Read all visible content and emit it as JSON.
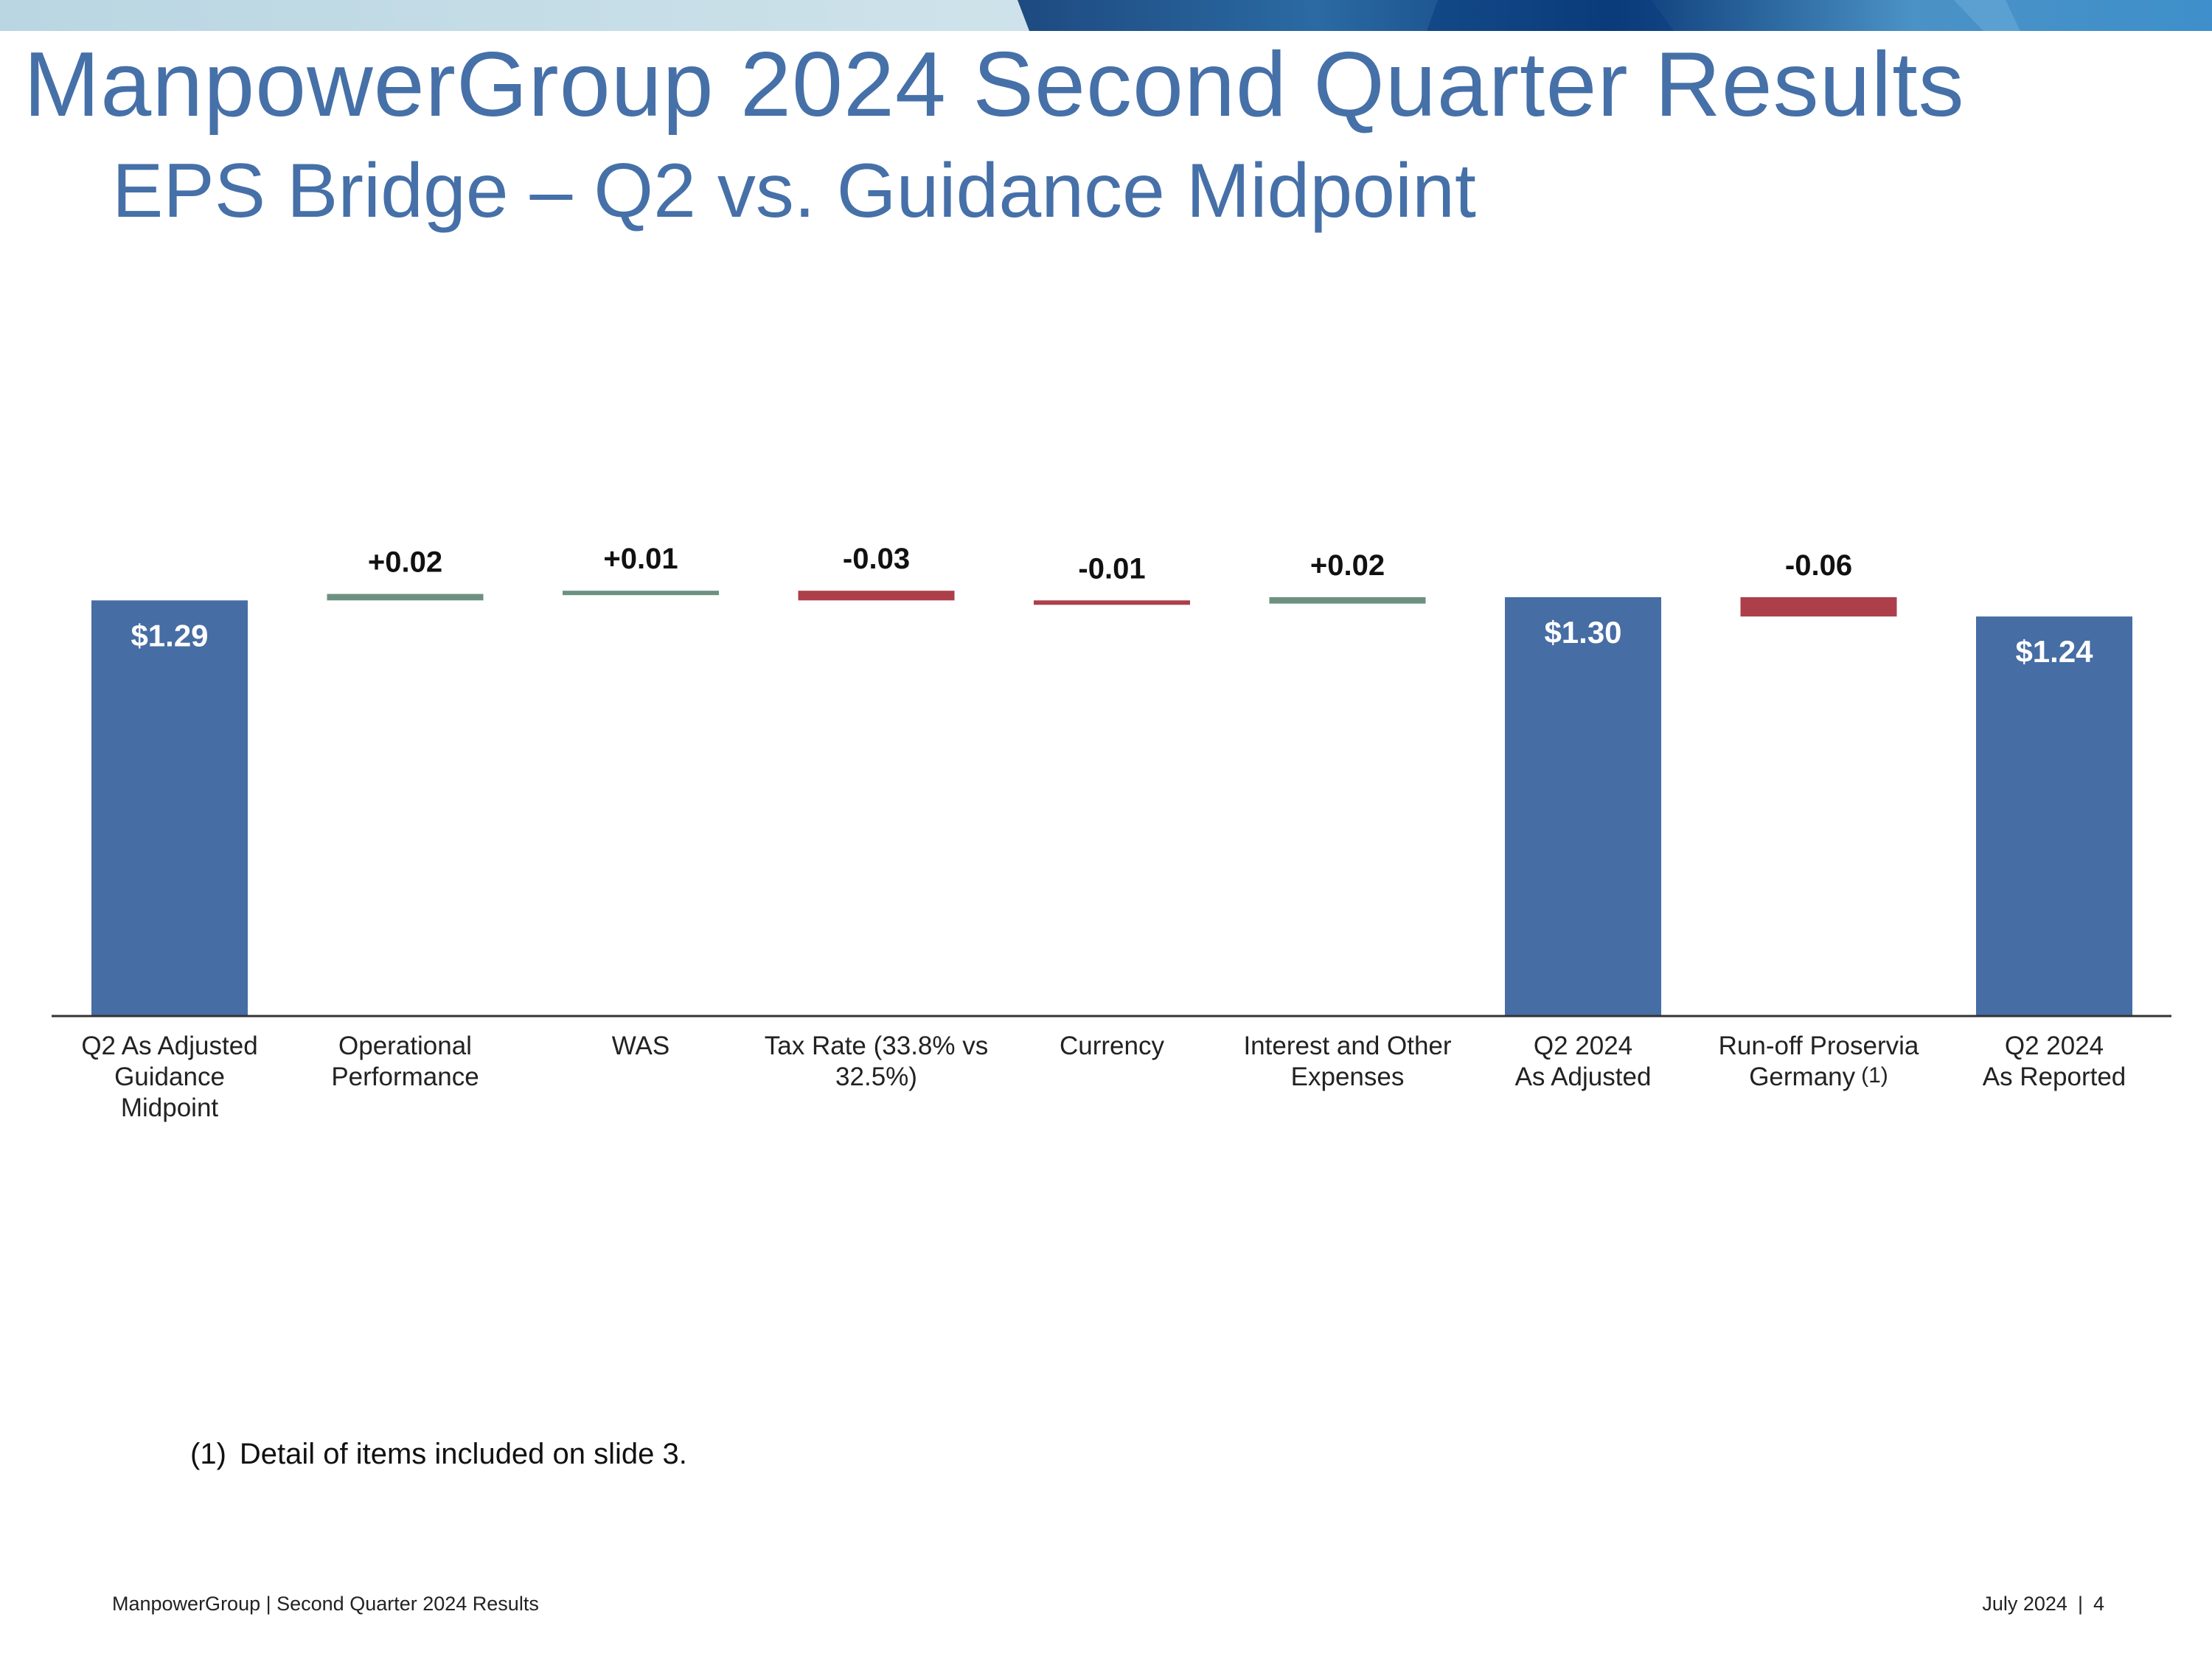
{
  "header": {
    "title": "ManpowerGroup 2024 Second Quarter Results",
    "subtitle": "EPS Bridge – Q2 vs. Guidance Midpoint"
  },
  "colors": {
    "title": "#4670a8",
    "total_bar": "#466da4",
    "increase_bar": "#6d9181",
    "decrease_bar": "#ad3f4a",
    "top_band": [
      "#b9d6e2",
      "#2a5d93",
      "#0c3b78",
      "#5aa0d0"
    ]
  },
  "chart_data": {
    "type": "bar",
    "subtype": "waterfall",
    "categories": [
      "Q2 As Adjusted Guidance Midpoint",
      "Operational Performance",
      "WAS",
      "Tax Rate (33.8% vs 32.5%)",
      "Currency",
      "Interest and Other Expenses",
      "Q2 2024 As Adjusted",
      "Run-off Proservia Germany",
      "Q2 2024 As Reported"
    ],
    "category_lines": [
      [
        "Q2 As Adjusted",
        "Guidance",
        "Midpoint"
      ],
      [
        "Operational",
        "Performance"
      ],
      [
        "WAS"
      ],
      [
        "Tax Rate (33.8% vs",
        "32.5%)"
      ],
      [
        "Currency"
      ],
      [
        "Interest and Other",
        "Expenses"
      ],
      [
        "Q2 2024",
        "As Adjusted"
      ],
      [
        "Run-off Proservia",
        "Germany"
      ],
      [
        "Q2 2024",
        "As Reported"
      ]
    ],
    "category_superscripts": [
      "",
      "",
      "",
      "",
      "",
      "",
      "",
      "(1)",
      ""
    ],
    "values": [
      1.29,
      0.02,
      0.01,
      -0.03,
      -0.01,
      0.02,
      1.3,
      -0.06,
      1.24
    ],
    "kinds": [
      "total",
      "increase",
      "increase",
      "decrease",
      "decrease",
      "increase",
      "total",
      "decrease",
      "total"
    ],
    "labels": [
      "$1.29",
      "+0.02",
      "+0.01",
      "-0.03",
      "-0.01",
      "+0.02",
      "$1.30",
      "-0.06",
      "$1.24"
    ],
    "ylim": [
      0,
      1.35
    ]
  },
  "footnote": {
    "marker": "(1)",
    "text": "Detail of items included on slide 3."
  },
  "footer": {
    "left": "ManpowerGroup  |  Second Quarter 2024 Results",
    "date": "July 2024",
    "page": "4"
  }
}
